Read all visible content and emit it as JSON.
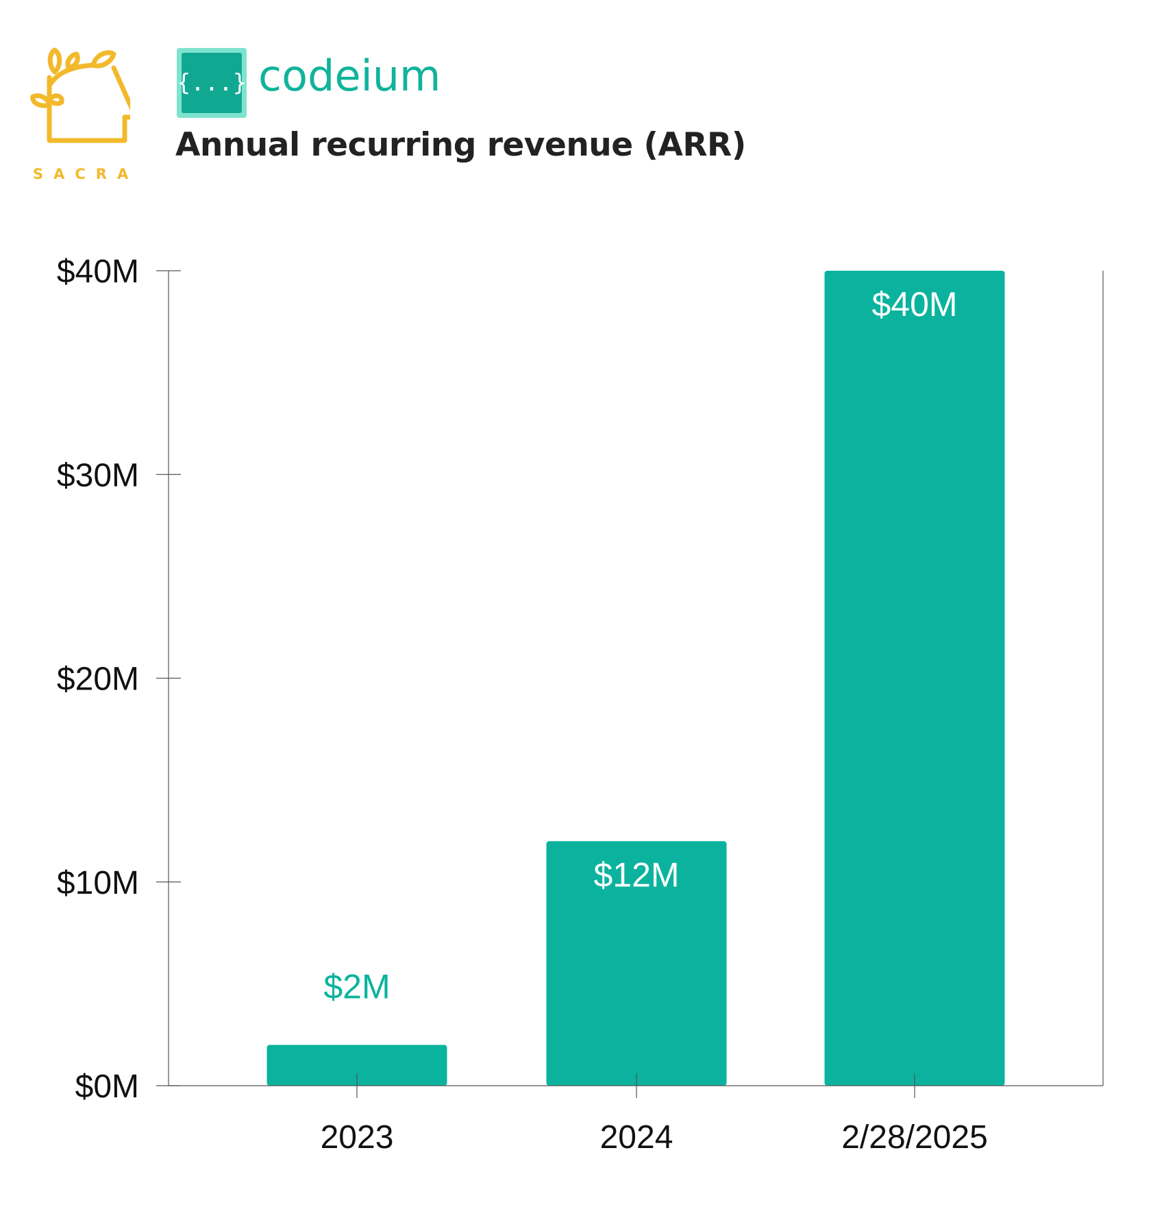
{
  "brand": {
    "sacra_label": "SACRA",
    "sacra_color": "#F2B92B",
    "company_name": "codeium",
    "company_icon_text": "{...}",
    "company_color": "#10B39B"
  },
  "chart_data": {
    "type": "bar",
    "title": "Annual recurring revenue (ARR)",
    "categories": [
      "2023",
      "2024",
      "2/28/2025"
    ],
    "values": [
      2,
      12,
      40
    ],
    "value_labels": [
      "$2M",
      "$12M",
      "$40M"
    ],
    "unit": "$M",
    "ylim": [
      0,
      40
    ],
    "yticks": [
      0,
      10,
      20,
      30,
      40
    ],
    "ytick_labels": [
      "$0M",
      "$10M",
      "$20M",
      "$30M",
      "$40M"
    ],
    "xlabel": "",
    "ylabel": "",
    "bar_color": "#0BB39E",
    "grid": false,
    "legend": "none"
  }
}
